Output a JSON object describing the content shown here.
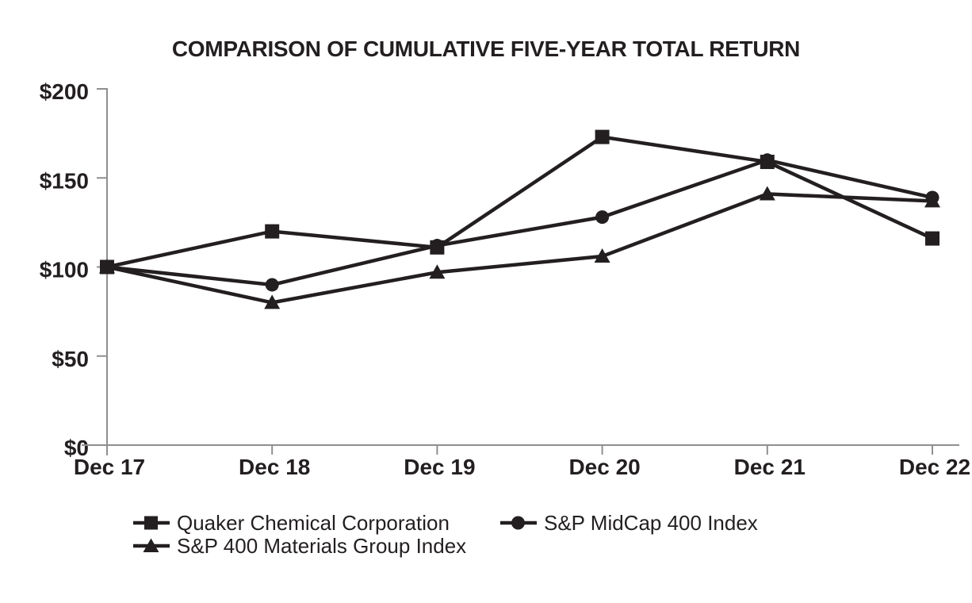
{
  "chart_data": {
    "type": "line",
    "title": "COMPARISON OF CUMULATIVE FIVE-YEAR TOTAL RETURN",
    "x_labels": [
      "Dec 17",
      "Dec 18",
      "Dec 19",
      "Dec 20",
      "Dec 21",
      "Dec 22"
    ],
    "y_ticks": [
      {
        "label": "$200",
        "value": 200
      },
      {
        "label": "$150",
        "value": 150
      },
      {
        "label": "$100",
        "value": 100
      },
      {
        "label": "$50",
        "value": 50
      },
      {
        "label": "$0",
        "value": 0
      }
    ],
    "ylim": [
      0,
      200
    ],
    "grid": false,
    "legend_position": "bottom-left",
    "series": [
      {
        "name": "Quaker Chemical Corporation",
        "marker": "square",
        "values": [
          100,
          120,
          111,
          173,
          159,
          116
        ]
      },
      {
        "name": "S&P MidCap 400 Index",
        "marker": "circle",
        "values": [
          100,
          90,
          112,
          128,
          160,
          139
        ]
      },
      {
        "name": "S&P 400 Materials Group Index",
        "marker": "triangle",
        "values": [
          100,
          80,
          97,
          106,
          141,
          137
        ]
      }
    ],
    "colors": {
      "series": "#231f20",
      "axis": "#8f8f8f",
      "text": "#231f20",
      "background": "#ffffff"
    }
  }
}
